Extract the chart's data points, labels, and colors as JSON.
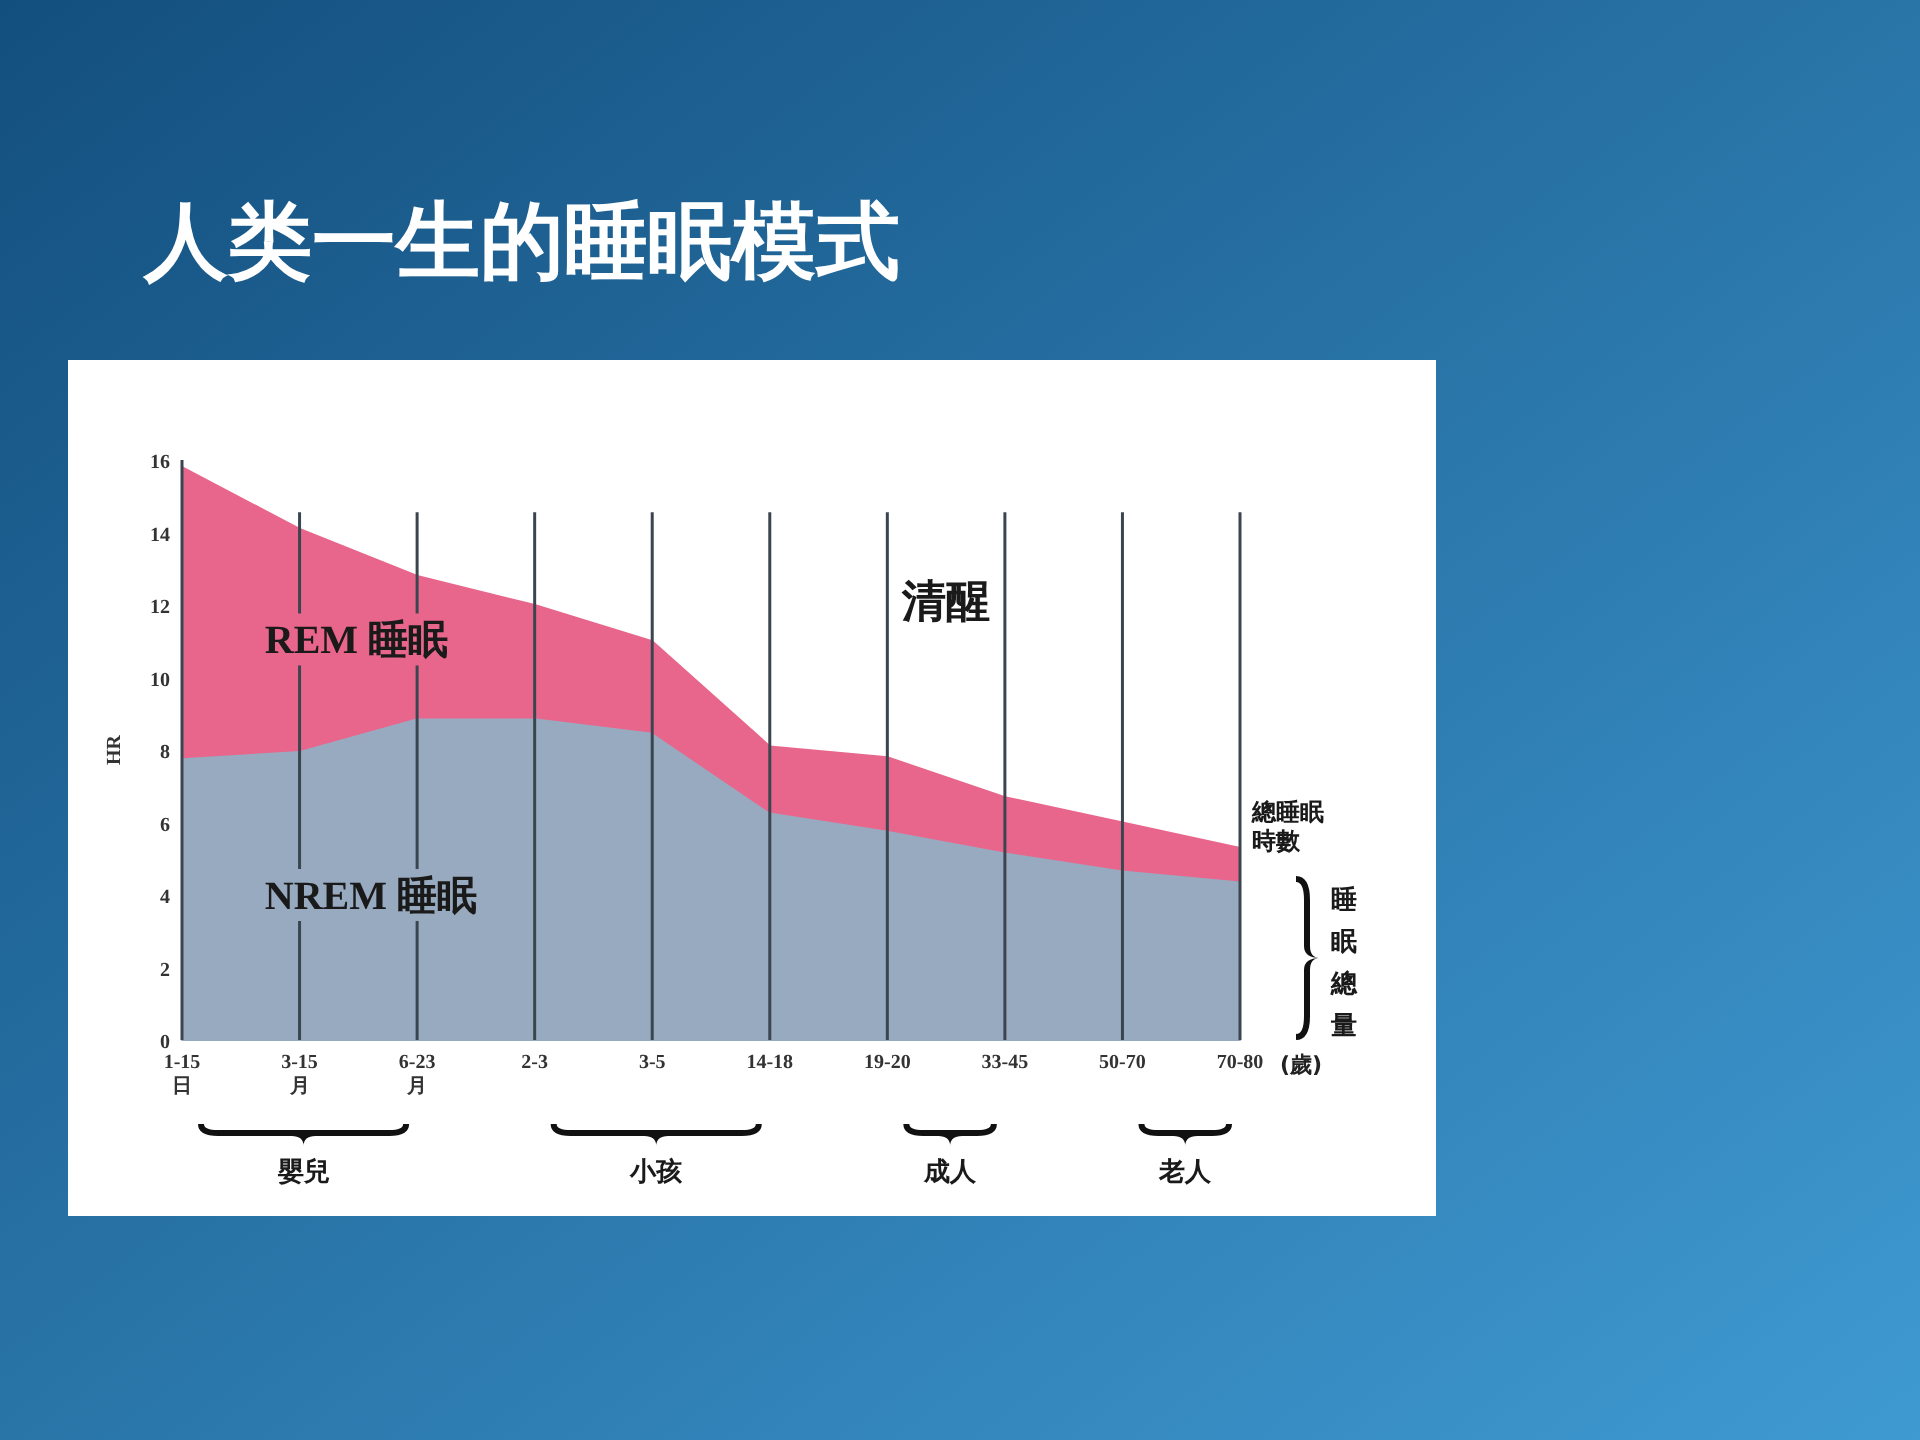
{
  "chart_data": {
    "type": "area",
    "stacked": true,
    "title": "人类一生的睡眠模式",
    "categories": [
      "1-15\n日",
      "3-15\n月",
      "6-23\n月",
      "2-3",
      "3-5",
      "14-18",
      "19-20",
      "33-45",
      "50-70",
      "70-80"
    ],
    "series": [
      {
        "name": "NREM 睡眠",
        "color": "#98aac0",
        "values": [
          7.8,
          8.0,
          8.9,
          8.9,
          8.5,
          6.3,
          5.8,
          5.2,
          4.7,
          4.4
        ]
      },
      {
        "name": "REM 睡眠",
        "color": "#e8668c",
        "values": [
          8.0,
          6.1,
          3.9,
          3.1,
          2.5,
          1.8,
          2.0,
          1.5,
          1.3,
          0.9
        ]
      }
    ],
    "ylim": [
      0,
      16
    ],
    "yticks": [
      0,
      2,
      4,
      6,
      8,
      10,
      12,
      14,
      16
    ],
    "ylabel": "HR",
    "xlabel": "(歲)",
    "grid": "x",
    "legend": false,
    "annotations": [
      "清醒",
      "總睡眠時數",
      "睡眠總量",
      "嬰兒",
      "小孩",
      "成人",
      "老人"
    ]
  }
}
